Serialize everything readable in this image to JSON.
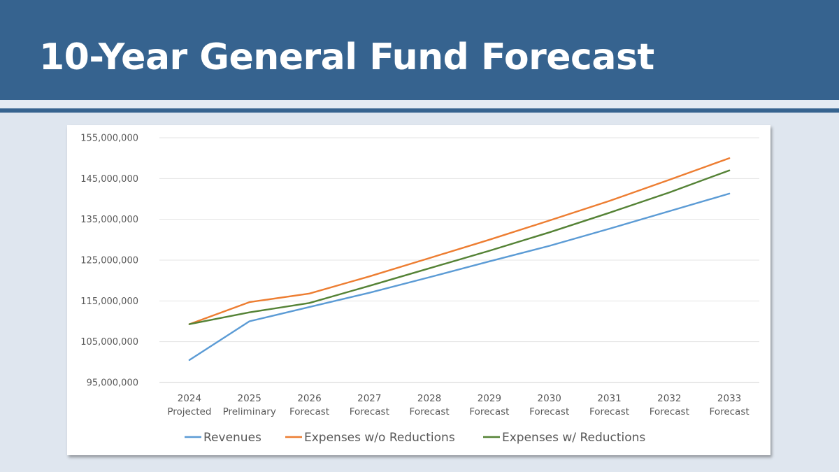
{
  "slide": {
    "title": "10-Year General Fund Forecast"
  },
  "chart_data": {
    "type": "line",
    "title": "",
    "xlabel": "",
    "ylabel": "",
    "ylim": [
      95000000,
      155000000
    ],
    "yticks": [
      "95,000,000",
      "105,000,000",
      "115,000,000",
      "125,000,000",
      "135,000,000",
      "145,000,000",
      "155,000,000"
    ],
    "ytick_values": [
      95000000,
      105000000,
      115000000,
      125000000,
      135000000,
      145000000,
      155000000
    ],
    "grid": true,
    "legend_position": "bottom",
    "categories": [
      [
        "2024",
        "Projected"
      ],
      [
        "2025",
        "Preliminary"
      ],
      [
        "2026",
        "Forecast"
      ],
      [
        "2027",
        "Forecast"
      ],
      [
        "2028",
        "Forecast"
      ],
      [
        "2029",
        "Forecast"
      ],
      [
        "2030",
        "Forecast"
      ],
      [
        "2031",
        "Forecast"
      ],
      [
        "2032",
        "Forecast"
      ],
      [
        "2033",
        "Forecast"
      ]
    ],
    "series": [
      {
        "name": "Revenues",
        "color": "#5b9bd5",
        "values": [
          100500000,
          110000000,
          113500000,
          117000000,
          120800000,
          124700000,
          128500000,
          132700000,
          137000000,
          141300000
        ]
      },
      {
        "name": "Expenses w/o Reductions",
        "color": "#ed7d31",
        "values": [
          109300000,
          114700000,
          116800000,
          121000000,
          125500000,
          130000000,
          134700000,
          139500000,
          144700000,
          150000000
        ]
      },
      {
        "name": "Expenses w/ Reductions",
        "color": "#548235",
        "values": [
          109300000,
          112200000,
          114500000,
          118700000,
          123000000,
          127300000,
          131800000,
          136600000,
          141600000,
          147000000
        ]
      }
    ]
  }
}
